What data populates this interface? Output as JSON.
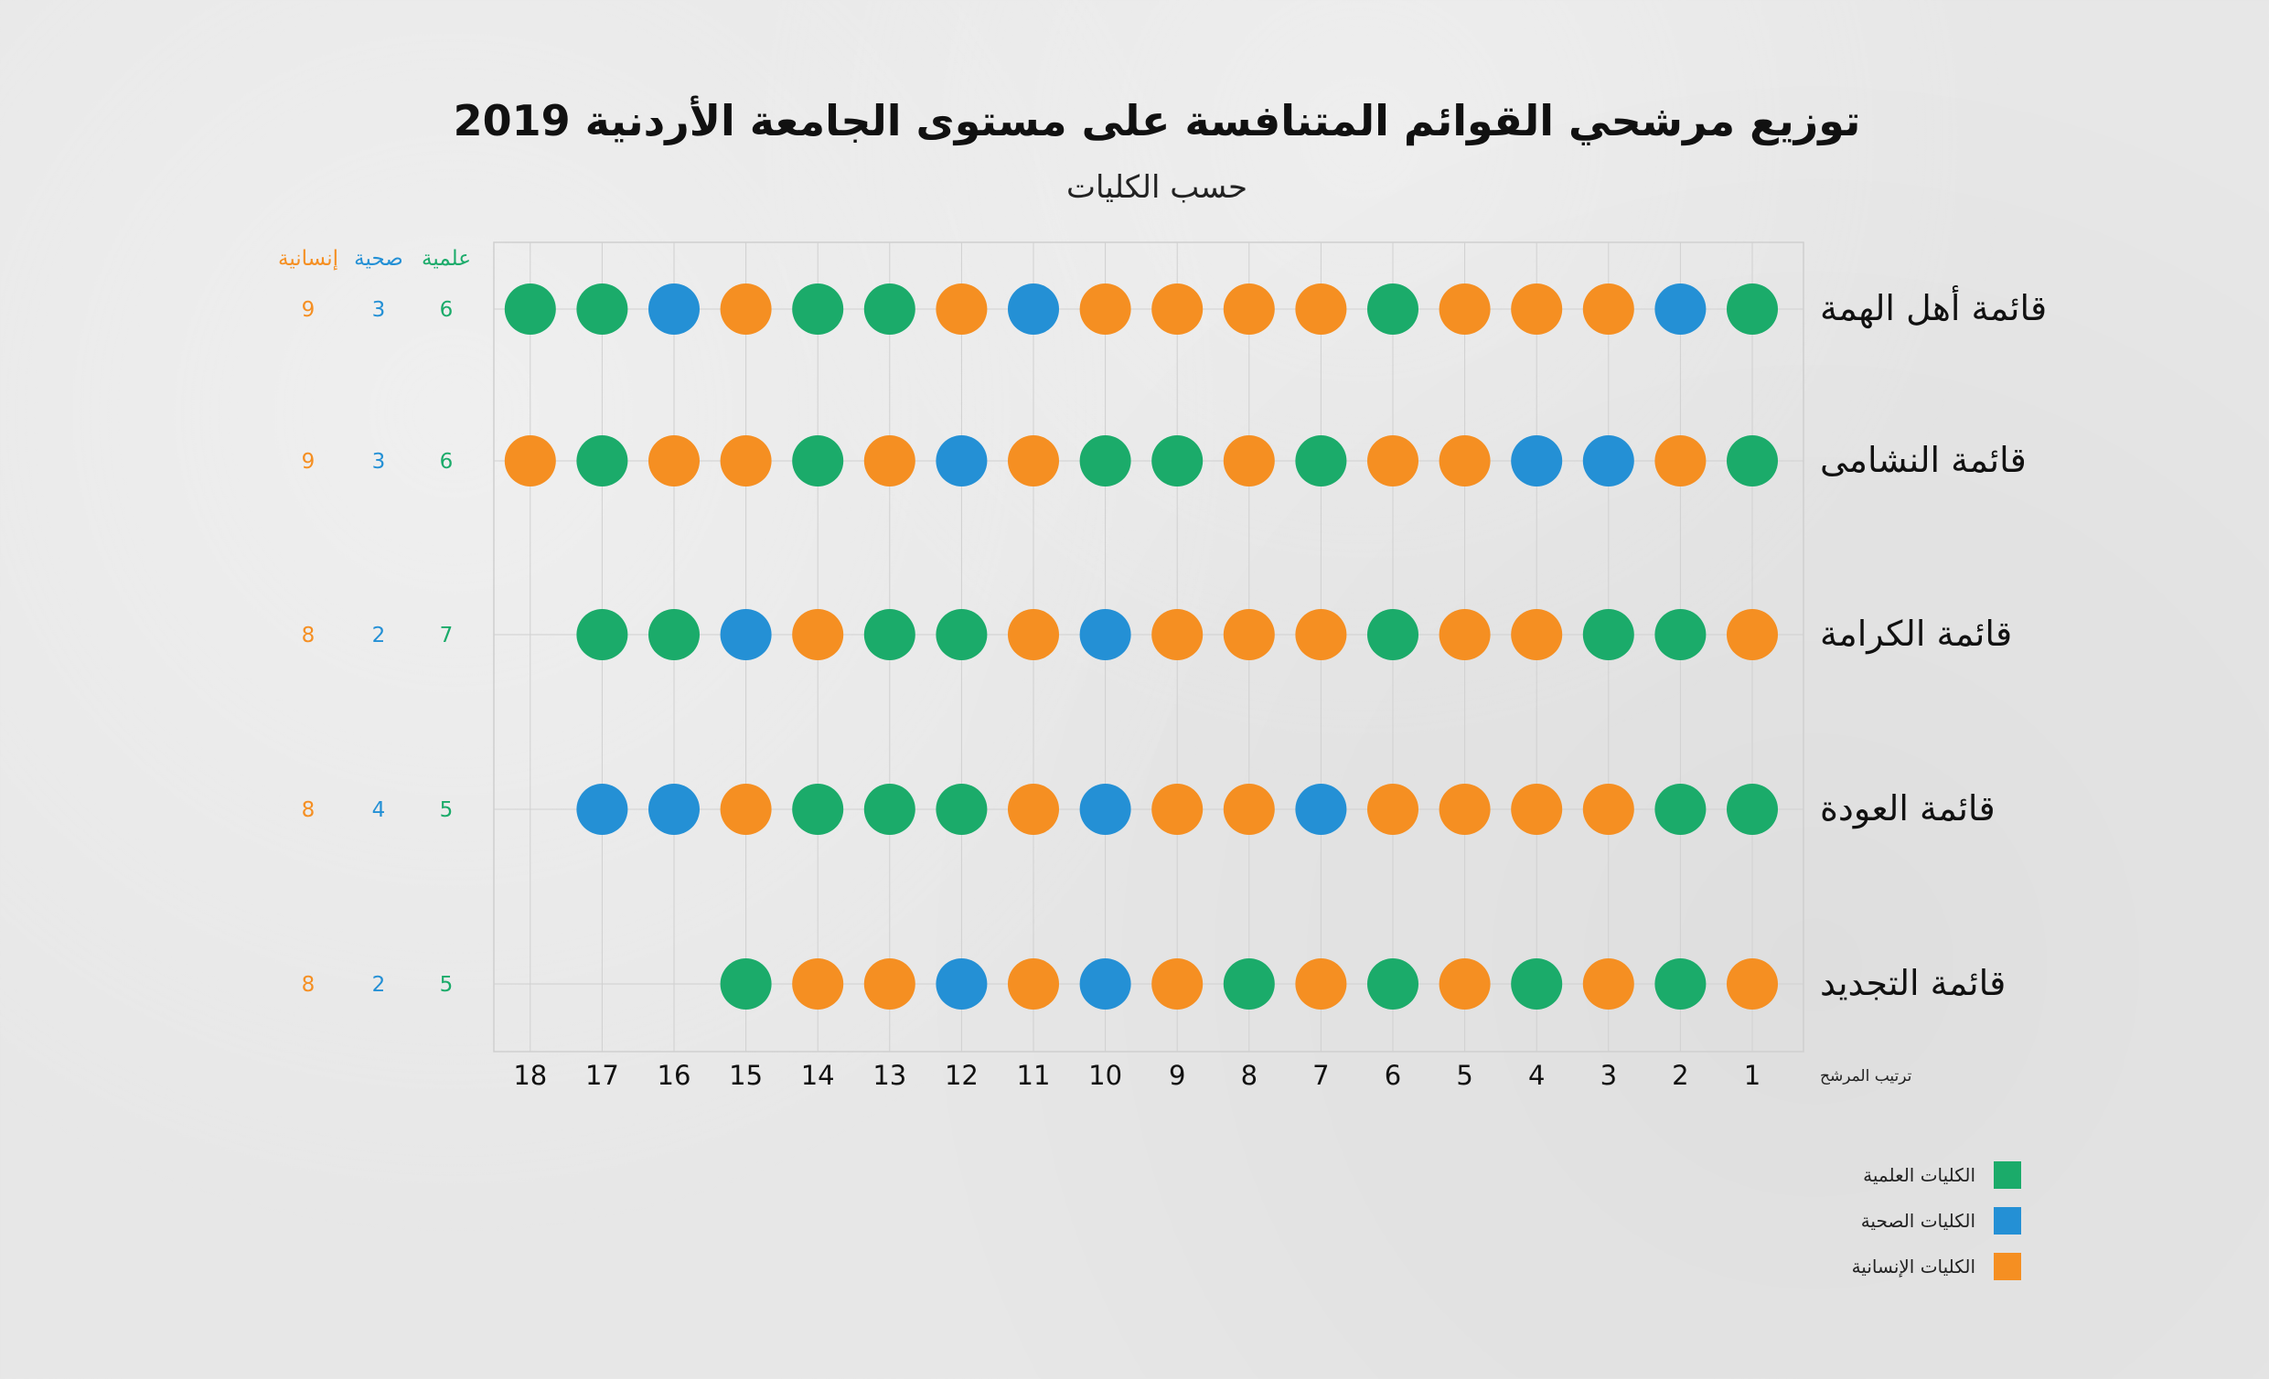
{
  "title": "توزيع مرشحي القوائم المتنافسة على مستوى الجامعة الأردنية 2019",
  "subtitle": "حسب الكليات",
  "colors": {
    "scientific": "#1bab6a",
    "health": "#2490d5",
    "humanities": "#f58f22"
  },
  "chart_data": {
    "type": "dot-matrix",
    "title": "توزيع مرشحي القوائم المتنافسة على مستوى الجامعة الأردنية 2019",
    "subtitle": "حسب الكليات",
    "xlabel": "ترتيب المرشح",
    "x": [
      1,
      2,
      3,
      4,
      5,
      6,
      7,
      8,
      9,
      10,
      11,
      12,
      13,
      14,
      15,
      16,
      17,
      18
    ],
    "count_headers": [
      "علمية",
      "صحية",
      "إنسانية"
    ],
    "legend": [
      {
        "key": "S",
        "label": "الكليات العلمية"
      },
      {
        "key": "H",
        "label": "الكليات الصحية"
      },
      {
        "key": "U",
        "label": "الكليات الإنسانية"
      }
    ],
    "series": [
      {
        "name": "قائمة أهل الهمة",
        "candidates": [
          "S",
          "H",
          "U",
          "U",
          "U",
          "S",
          "U",
          "U",
          "U",
          "U",
          "H",
          "U",
          "S",
          "S",
          "U",
          "H",
          "S",
          "S"
        ],
        "counts": [
          6,
          3,
          9
        ]
      },
      {
        "name": "قائمة النشامى",
        "candidates": [
          "S",
          "U",
          "H",
          "H",
          "U",
          "U",
          "S",
          "U",
          "S",
          "S",
          "U",
          "H",
          "U",
          "S",
          "U",
          "U",
          "S",
          "U"
        ],
        "counts": [
          6,
          3,
          9
        ]
      },
      {
        "name": "قائمة الكرامة",
        "candidates": [
          "U",
          "S",
          "S",
          "U",
          "U",
          "S",
          "U",
          "U",
          "U",
          "H",
          "U",
          "S",
          "S",
          "U",
          "H",
          "S",
          "S"
        ],
        "counts": [
          7,
          2,
          8
        ]
      },
      {
        "name": "قائمة العودة",
        "candidates": [
          "S",
          "S",
          "U",
          "U",
          "U",
          "U",
          "H",
          "U",
          "U",
          "H",
          "U",
          "S",
          "S",
          "S",
          "U",
          "H",
          "H"
        ],
        "counts": [
          5,
          4,
          8
        ]
      },
      {
        "name": "قائمة التجديد",
        "candidates": [
          "U",
          "S",
          "U",
          "S",
          "U",
          "S",
          "U",
          "S",
          "U",
          "H",
          "U",
          "H",
          "U",
          "U",
          "S"
        ],
        "counts": [
          5,
          2,
          8
        ]
      }
    ]
  }
}
